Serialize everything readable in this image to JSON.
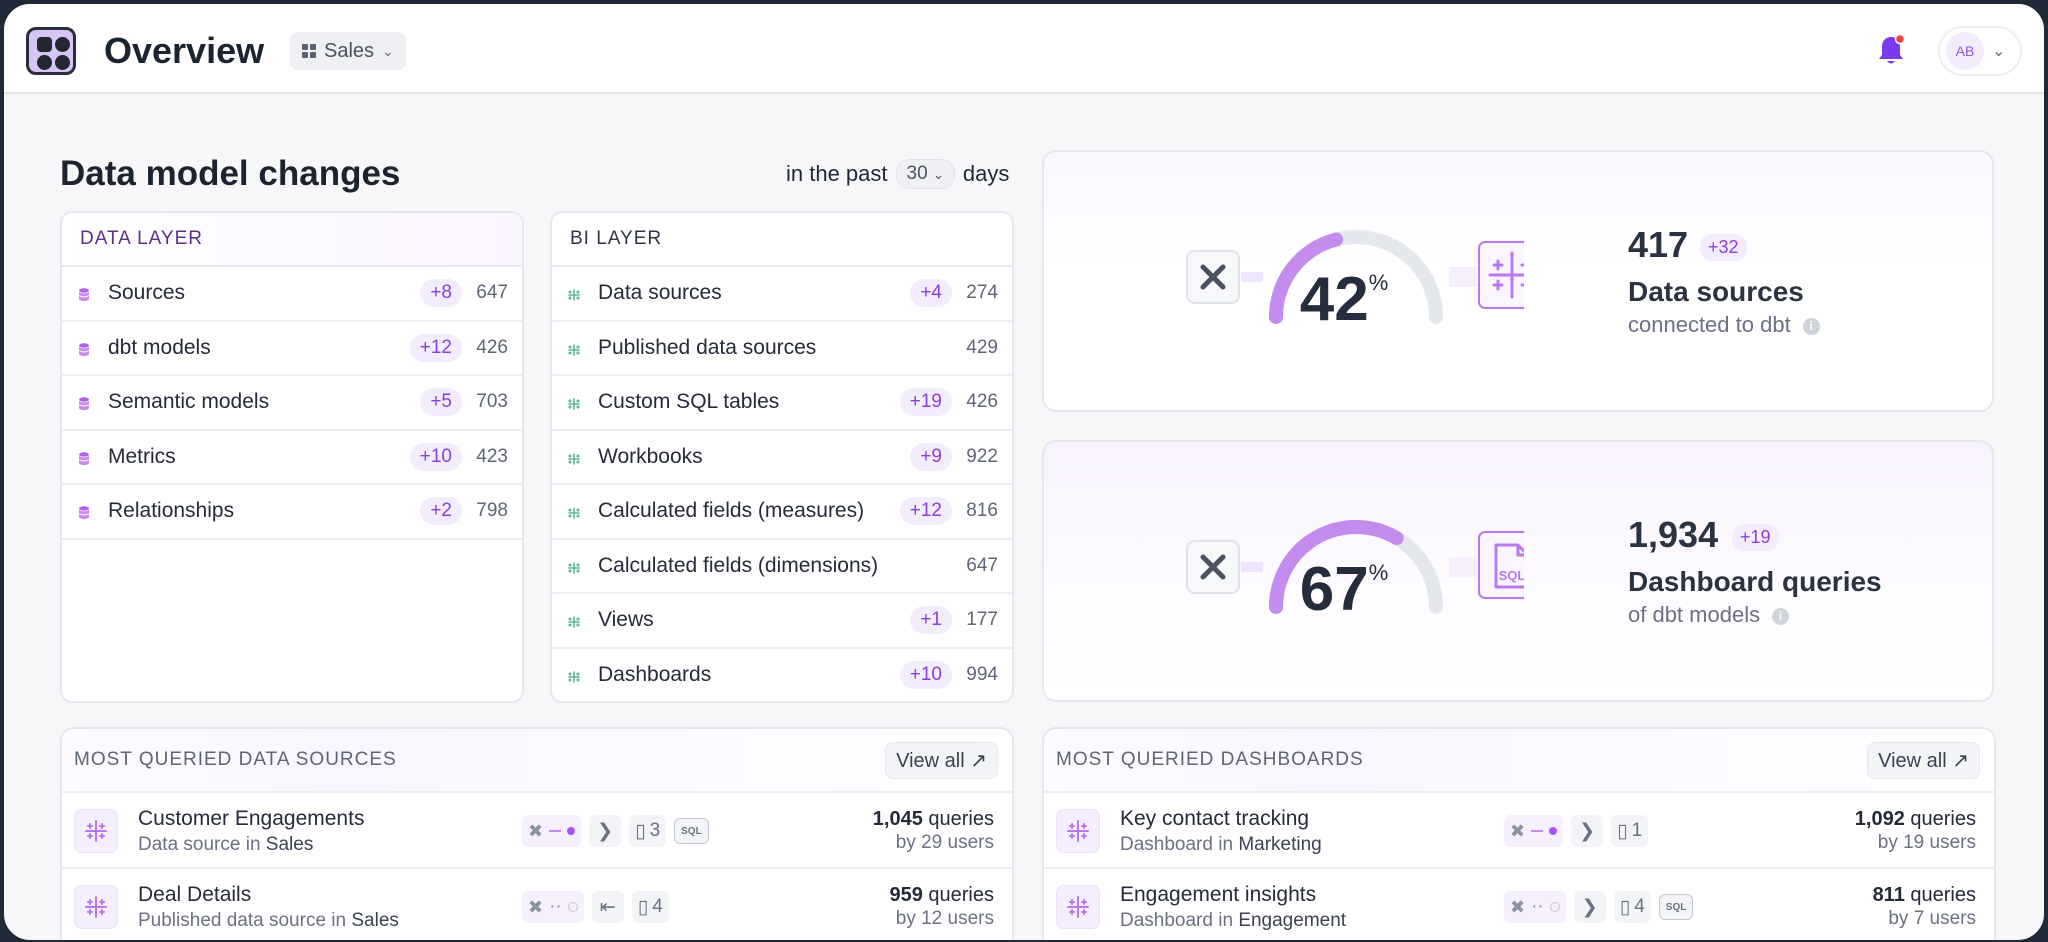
{
  "header": {
    "title": "Overview",
    "workspace": "Sales",
    "avatar": "AB"
  },
  "changes": {
    "title": "Data model changes",
    "period_prefix": "in the past",
    "period_value": "30",
    "period_suffix": "days"
  },
  "data_layer": {
    "title": "DATA LAYER",
    "rows": [
      {
        "label": "Sources",
        "delta": "+8",
        "count": "647"
      },
      {
        "label": "dbt models",
        "delta": "+12",
        "count": "426"
      },
      {
        "label": "Semantic models",
        "delta": "+5",
        "count": "703"
      },
      {
        "label": "Metrics",
        "delta": "+10",
        "count": "423"
      },
      {
        "label": "Relationships",
        "delta": "+2",
        "count": "798"
      }
    ]
  },
  "bi_layer": {
    "title": "BI LAYER",
    "rows": [
      {
        "label": "Data sources",
        "delta": "+4",
        "count": "274"
      },
      {
        "label": "Published data sources",
        "delta": "",
        "count": "429"
      },
      {
        "label": "Custom SQL tables",
        "delta": "+19",
        "count": "426"
      },
      {
        "label": "Workbooks",
        "delta": "+9",
        "count": "922"
      },
      {
        "label": "Calculated fields (measures)",
        "delta": "+12",
        "count": "816"
      },
      {
        "label": "Calculated fields (dimensions)",
        "delta": "",
        "count": "647"
      },
      {
        "label": "Views",
        "delta": "+1",
        "count": "177"
      },
      {
        "label": "Dashboards",
        "delta": "+10",
        "count": "994"
      }
    ]
  },
  "stat_sources": {
    "percent": "42",
    "percent_fraction": 0.42,
    "percent_sign": "%",
    "value": "417",
    "delta": "+32",
    "label": "Data sources",
    "sub": "connected to dbt",
    "right_icon": "tableau-icon"
  },
  "stat_queries": {
    "percent": "67",
    "percent_fraction": 0.67,
    "percent_sign": "%",
    "value": "1,934",
    "delta": "+19",
    "label": "Dashboard queries",
    "sub": "of dbt models",
    "right_icon": "sql-file-icon"
  },
  "most_sources": {
    "title": "MOST QUERIED DATA SOURCES",
    "view_all": "View all",
    "rows": [
      {
        "name": "Customer Engagements",
        "sub_prefix": "Data source in",
        "sub_place": "Sales",
        "workbooks": "3",
        "queries": "1,045",
        "queries_word": "queries",
        "users": "by 29 users"
      },
      {
        "name": "Deal Details",
        "sub_prefix": "Published data source in",
        "sub_place": "Sales",
        "workbooks": "4",
        "queries": "959",
        "queries_word": "queries",
        "users": "by 12 users"
      }
    ]
  },
  "most_dashboards": {
    "title": "MOST QUERIED DASHBOARDS",
    "view_all": "View all",
    "rows": [
      {
        "name": "Key contact tracking",
        "sub_prefix": "Dashboard in",
        "sub_place": "Marketing",
        "workbooks": "1",
        "queries": "1,092",
        "queries_word": "queries",
        "users": "by 19 users"
      },
      {
        "name": "Engagement insights",
        "sub_prefix": "Dashboard in",
        "sub_place": "Engagement",
        "workbooks": "4",
        "queries": "811",
        "queries_word": "queries",
        "users": "by 7 users"
      }
    ]
  },
  "colors": {
    "accent": "#8a3fd6",
    "accent_light": "#f3ecfd",
    "gauge_fill": "#c58cf0",
    "gauge_track": "#e4e7ec",
    "notification_dot": "#ef4444"
  }
}
